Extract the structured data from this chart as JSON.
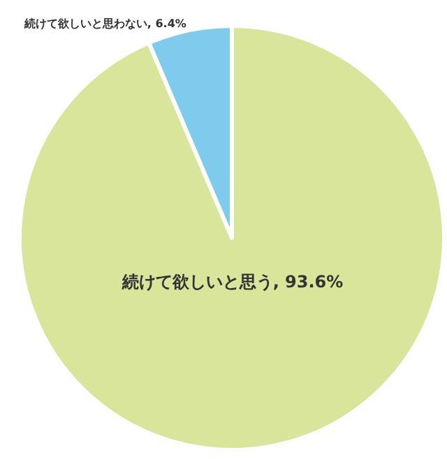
{
  "chart_data": {
    "type": "pie",
    "categories": [
      "続けて欲しいと思わない",
      "続けて欲しいと思う"
    ],
    "values": [
      6.4,
      93.6
    ],
    "colors": [
      "#7ecbee",
      "#d8e59a"
    ],
    "value_labels": [
      "6.4%",
      "93.6%"
    ],
    "legend": false
  }
}
